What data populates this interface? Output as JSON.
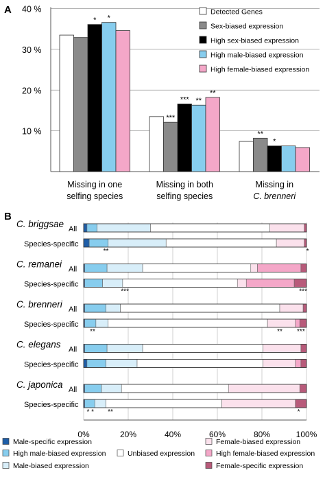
{
  "panel_a": {
    "label": "A",
    "chart_data": {
      "type": "bar",
      "y_ticks": [
        "40 %",
        "30 %",
        "20 %",
        "10 %"
      ],
      "ylim": [
        0,
        40
      ],
      "categories": [
        [
          "Missing in one",
          "selfing species"
        ],
        [
          "Missing in both",
          "selfing species"
        ],
        [
          "Missing in",
          "C. brenneri"
        ]
      ],
      "series": [
        {
          "name": "Detected Genes",
          "color": "#ffffff",
          "values": [
            33.5,
            13.5,
            7.4
          ]
        },
        {
          "name": "Sex-biased expression",
          "color": "#8a8a8a",
          "values": [
            32.9,
            12.1,
            8.2
          ]
        },
        {
          "name": "High sex-biased expression",
          "color": "#000000",
          "values": [
            36.1,
            16.6,
            6.3
          ]
        },
        {
          "name": "High male-biased expression",
          "color": "#87cdee",
          "values": [
            36.6,
            16.3,
            6.3
          ]
        },
        {
          "name": "High female-biased expression",
          "color": "#f4a7c8",
          "values": [
            34.6,
            18.2,
            5.9
          ]
        }
      ],
      "annotations": [
        {
          "category": 0,
          "series": 2,
          "text": "*"
        },
        {
          "category": 0,
          "series": 3,
          "text": "*"
        },
        {
          "category": 1,
          "series": 1,
          "text": "***"
        },
        {
          "category": 1,
          "series": 2,
          "text": "***"
        },
        {
          "category": 1,
          "series": 3,
          "text": "**"
        },
        {
          "category": 1,
          "series": 4,
          "text": "**"
        },
        {
          "category": 2,
          "series": 1,
          "text": "**"
        },
        {
          "category": 2,
          "series": 2,
          "text": "*"
        }
      ]
    }
  },
  "panel_b": {
    "label": "B",
    "chart_data": {
      "type": "bar",
      "stacked": true,
      "orientation": "horizontal",
      "x_ticks": [
        "0%",
        "20%",
        "40%",
        "60%",
        "80%",
        "100%"
      ],
      "xlim": [
        0,
        100
      ],
      "segments": [
        {
          "name": "Male-specific expression",
          "color": "#1e5ea8"
        },
        {
          "name": "High male-biased expression",
          "color": "#87cdee"
        },
        {
          "name": "Male-biased expression",
          "color": "#d8eef9"
        },
        {
          "name": "Unbiased expression",
          "color": "#ffffff"
        },
        {
          "name": "Female-biased expression",
          "color": "#fbe1ec"
        },
        {
          "name": "High female-biased expression",
          "color": "#f4a7c8"
        },
        {
          "name": "Female-specific expression",
          "color": "#b85a7a"
        }
      ],
      "groups": [
        {
          "species": "C. briggsae",
          "rows": [
            {
              "label": "All",
              "values": [
                1.5,
                4.5,
                24,
                53.5,
                15.5,
                0,
                1
              ]
            },
            {
              "label": "Species-specific",
              "values": [
                2.5,
                8.5,
                26,
                49.5,
                12.5,
                0,
                1
              ],
              "annotations": [
                {
                  "at": 10,
                  "text": "**"
                },
                {
                  "at": 100.5,
                  "text": "*"
                }
              ]
            }
          ]
        },
        {
          "species": "C. remanei",
          "rows": [
            {
              "label": "All",
              "values": [
                0.5,
                10,
                16,
                48.5,
                3,
                19.5,
                2.5
              ]
            },
            {
              "label": "Species-specific",
              "values": [
                0.5,
                8,
                9,
                51.5,
                4,
                21.5,
                5.5
              ],
              "annotations": [
                {
                  "at": 18.5,
                  "text": "***"
                },
                {
                  "at": 98.5,
                  "text": "***"
                }
              ]
            }
          ]
        },
        {
          "species": "C. brenneri",
          "rows": [
            {
              "label": "All",
              "values": [
                0.5,
                9.5,
                6.5,
                71.5,
                10.5,
                0,
                1.5
              ]
            },
            {
              "label": "Species-specific",
              "values": [
                0.5,
                5,
                5.5,
                71.5,
                12.5,
                2,
                3
              ],
              "annotations": [
                {
                  "at": 4,
                  "text": "**"
                },
                {
                  "at": 88,
                  "text": "**"
                },
                {
                  "at": 97.5,
                  "text": "***"
                }
              ]
            }
          ]
        },
        {
          "species": "C. elegans",
          "rows": [
            {
              "label": "All",
              "values": [
                0.5,
                10,
                16,
                54,
                17,
                0,
                2.5
              ]
            },
            {
              "label": "Species-specific",
              "values": [
                1.5,
                8.5,
                14,
                56.5,
                14.5,
                2.5,
                2.5
              ]
            }
          ]
        },
        {
          "species": "C. japonica",
          "rows": [
            {
              "label": "All",
              "values": [
                0.5,
                7.5,
                9,
                48,
                32,
                0,
                3
              ]
            },
            {
              "label": "Species-specific",
              "values": [
                0.5,
                4.5,
                5,
                52,
                33,
                0,
                5
              ],
              "annotations": [
                {
                  "at": 3,
                  "text": "* *"
                },
                {
                  "at": 12,
                  "text": "**"
                },
                {
                  "at": 96.5,
                  "text": "*"
                }
              ]
            }
          ]
        }
      ]
    }
  }
}
